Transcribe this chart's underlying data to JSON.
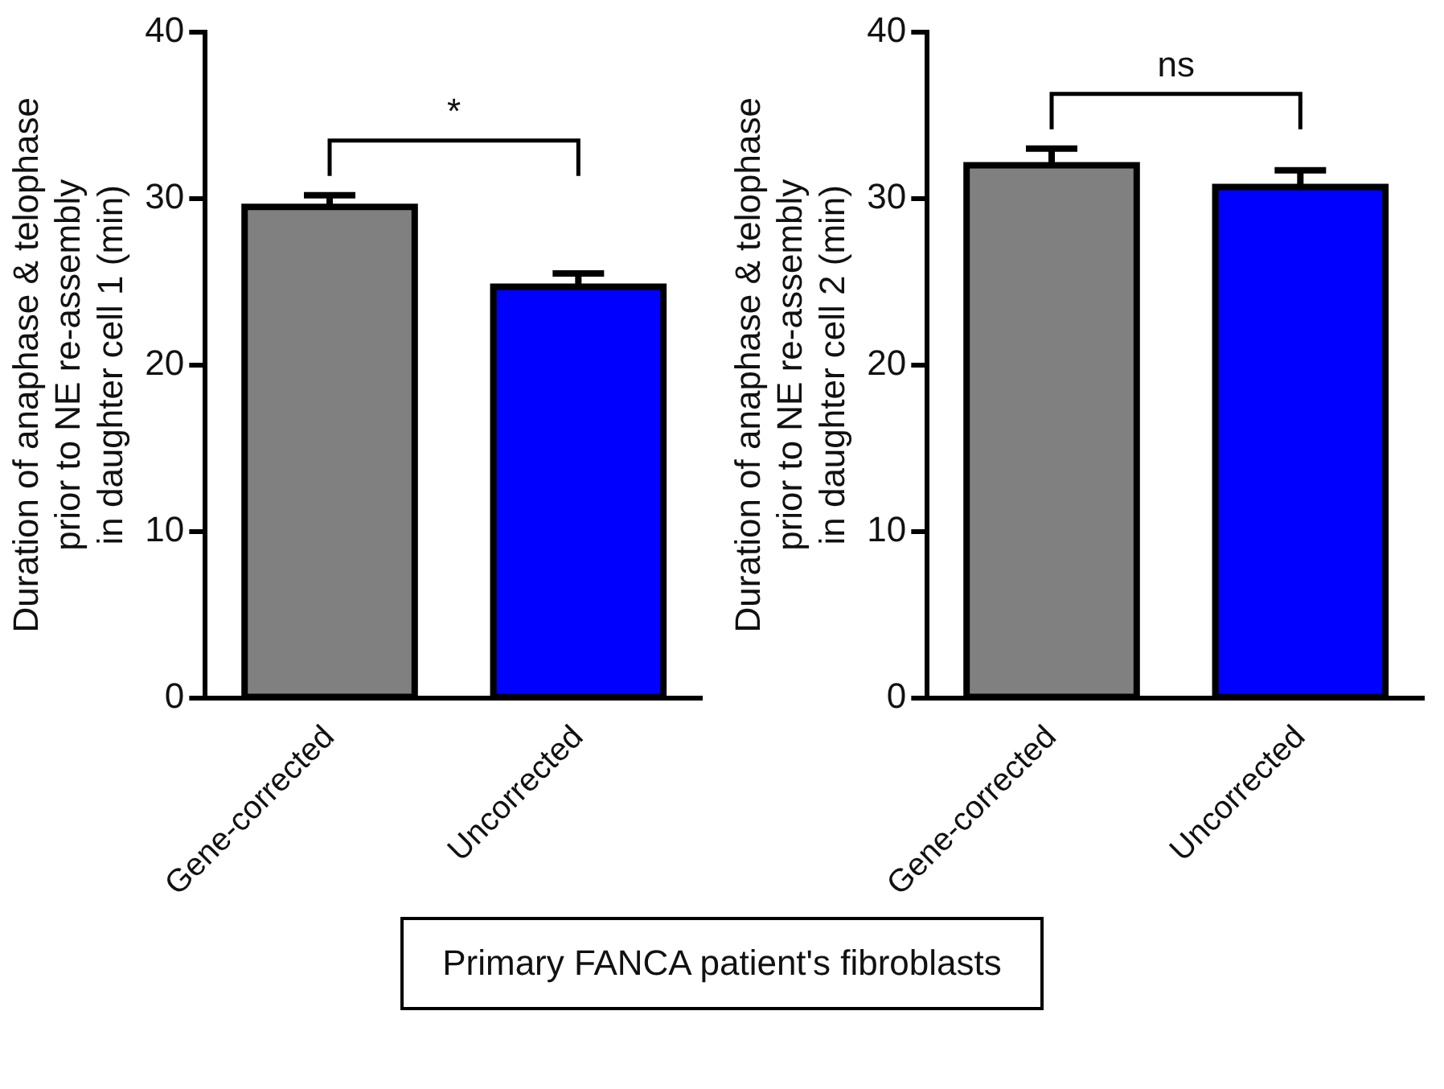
{
  "chart_data": [
    {
      "type": "bar",
      "ylabel": "Duration of anaphase & telophase\nprior to NE re-assembly\nin daughter cell 1 (min)",
      "categories": [
        "Gene-corrected",
        "Uncorrected"
      ],
      "values": [
        29.5,
        24.7
      ],
      "errors": [
        0.7,
        0.8
      ],
      "colors": [
        "#808080",
        "#0000ff"
      ],
      "ylim": [
        0,
        40
      ],
      "yticks": [
        0,
        10,
        20,
        30,
        40
      ],
      "grid": false,
      "legend": false,
      "annotations": [
        "*"
      ]
    },
    {
      "type": "bar",
      "ylabel": "Duration of anaphase & telophase\nprior to NE re-assembly\nin daughter cell 2 (min)",
      "categories": [
        "Gene-corrected",
        "Uncorrected"
      ],
      "values": [
        32.0,
        30.7
      ],
      "errors": [
        1.0,
        1.0
      ],
      "colors": [
        "#808080",
        "#0000ff"
      ],
      "ylim": [
        0,
        40
      ],
      "yticks": [
        0,
        10,
        20,
        30,
        40
      ],
      "grid": false,
      "legend": false,
      "annotations": [
        "ns"
      ]
    },
    {
      "type": "other",
      "annotations": [
        "Primary FANCA patient's fibroblasts"
      ]
    }
  ]
}
